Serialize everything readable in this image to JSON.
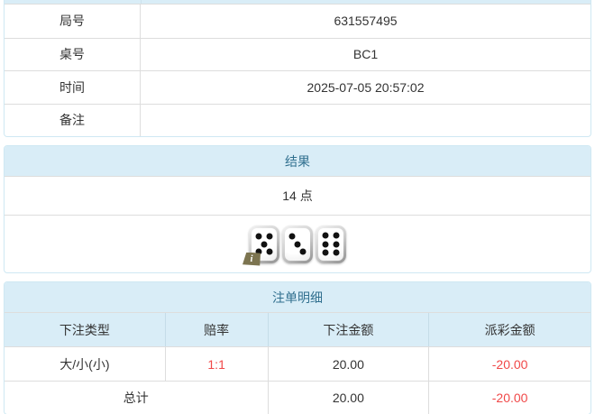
{
  "info_table": {
    "rows": [
      {
        "label": "局号",
        "value": "631557495"
      },
      {
        "label": "桌号",
        "value": "BC1"
      },
      {
        "label": "时间",
        "value": "2025-07-05 20:57:02"
      },
      {
        "label": "备注",
        "value": ""
      }
    ]
  },
  "result_panel": {
    "title": "结果",
    "points": "14 点",
    "dice": [
      5,
      3,
      6
    ],
    "info_icon": "i"
  },
  "bet_panel": {
    "title": "注单明细",
    "columns": [
      "下注类型",
      "赔率",
      "下注金额",
      "派彩金额"
    ],
    "rows": [
      {
        "bet_type": "大/小(小)",
        "odds": "1:1",
        "bet_amount": "20.00",
        "payout": "-20.00"
      }
    ],
    "total": {
      "label": "总计",
      "bet_amount": "20.00",
      "payout": "-20.00"
    }
  },
  "colors": {
    "panel_header_bg": "#d9edf7",
    "panel_header_text": "#31708f",
    "negative_text": "#f04848",
    "panel_border": "#cfe8f3",
    "row_divider": "#dddddd",
    "body_text": "#333333",
    "info_badge_bg": "#7c7450"
  }
}
